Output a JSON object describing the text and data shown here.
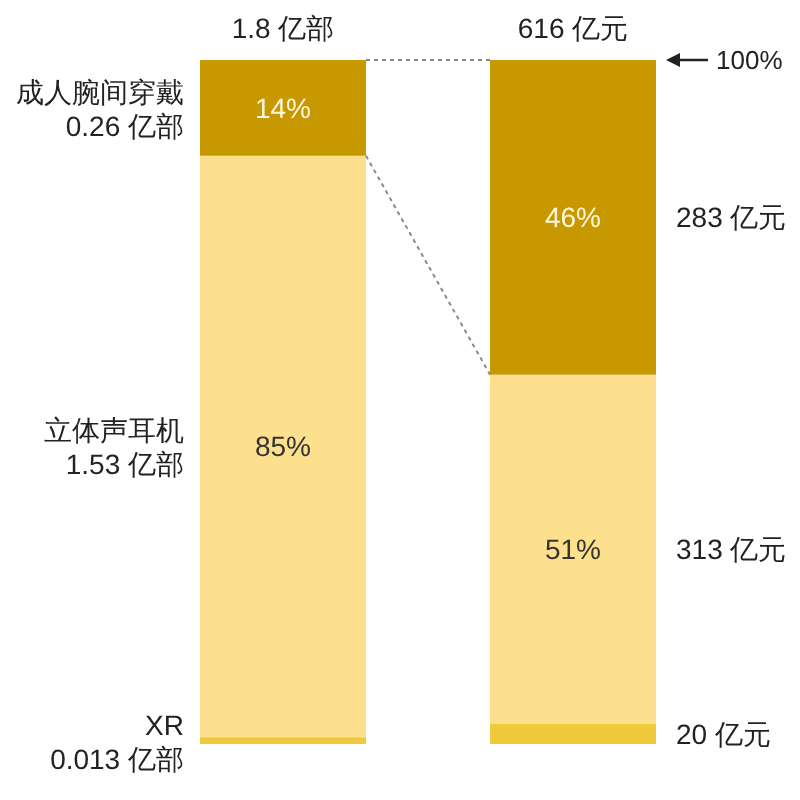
{
  "chart_data": {
    "type": "bar",
    "stacked": true,
    "categories": [
      "1.8 亿部",
      "616 亿元"
    ],
    "series": [
      {
        "name": "XR",
        "color": "#f0c93c",
        "values": [
          1,
          3
        ],
        "value_labels": [
          null,
          null
        ]
      },
      {
        "name": "立体声耳机",
        "color": "#fde08d",
        "values": [
          85,
          51
        ],
        "value_labels": [
          "85%",
          "51%"
        ]
      },
      {
        "name": "成人腕间穿戴",
        "color": "#c79800",
        "values": [
          14,
          46
        ],
        "value_labels": [
          "14%",
          "46%"
        ]
      }
    ],
    "ylim": [
      0,
      100
    ],
    "annotations": [
      "0.013 亿部",
      "1.53 亿部",
      "0.26 亿部",
      "20 亿元",
      "313 亿元",
      "283 亿元",
      "100%"
    ]
  }
}
